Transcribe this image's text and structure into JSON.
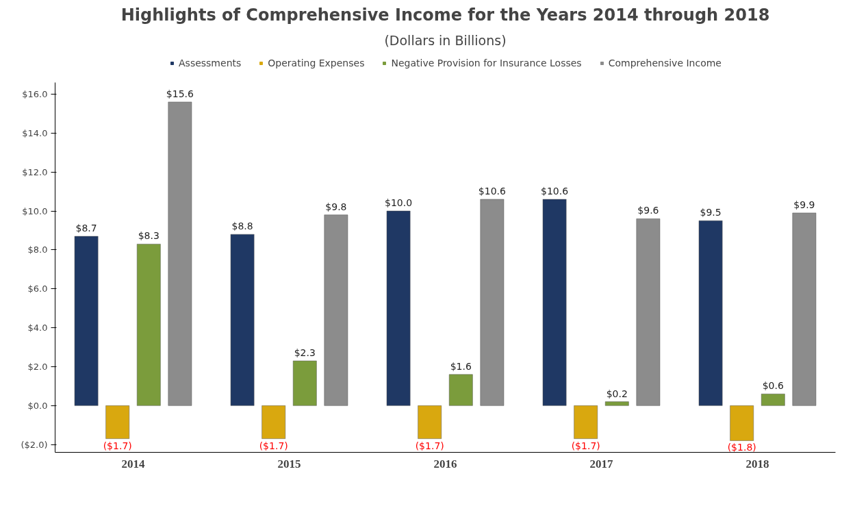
{
  "chart_data": {
    "type": "bar",
    "title": "Highlights of Comprehensive Income for the Years 2014 through 2018",
    "subtitle": "(Dollars in Billions)",
    "categories": [
      "2014",
      "2015",
      "2016",
      "2017",
      "2018"
    ],
    "series": [
      {
        "name": "Assessments",
        "color": "#1f3864",
        "values": [
          8.7,
          8.8,
          10.0,
          10.6,
          9.5
        ],
        "value_labels": [
          "$8.7",
          "$8.8",
          "$10.0",
          "$10.6",
          "$9.5"
        ]
      },
      {
        "name": "Operating Expenses",
        "color": "#d9a80f",
        "values": [
          -1.7,
          -1.7,
          -1.7,
          -1.7,
          -1.8
        ],
        "value_labels": [
          "($1.7)",
          "($1.7)",
          "($1.7)",
          "($1.7)",
          "($1.8)"
        ]
      },
      {
        "name": "Negative Provision for Insurance Losses",
        "color": "#7b9c3c",
        "values": [
          8.3,
          2.3,
          1.6,
          0.2,
          0.6
        ],
        "value_labels": [
          "$8.3",
          "$2.3",
          "$1.6",
          "$0.2",
          "$0.6"
        ]
      },
      {
        "name": "Comprehensive Income",
        "color": "#8c8c8c",
        "values": [
          15.6,
          9.8,
          10.6,
          9.6,
          9.9
        ],
        "value_labels": [
          "$15.6",
          "$9.8",
          "$10.6",
          "$9.6",
          "$9.9"
        ]
      }
    ],
    "ylim": [
      -2.4,
      16.6
    ],
    "yticks": [
      {
        "value": -2,
        "label": "($2.0)"
      },
      {
        "value": 0,
        "label": "$0.0"
      },
      {
        "value": 2,
        "label": "$2.0"
      },
      {
        "value": 4,
        "label": "$4.0"
      },
      {
        "value": 6,
        "label": "$6.0"
      },
      {
        "value": 8,
        "label": "$8.0"
      },
      {
        "value": 10,
        "label": "$10.0"
      },
      {
        "value": 12,
        "label": "$12.0"
      },
      {
        "value": 14,
        "label": "$14.0"
      },
      {
        "value": 16,
        "label": "$16.0"
      }
    ],
    "grid": false,
    "legend": "top"
  }
}
